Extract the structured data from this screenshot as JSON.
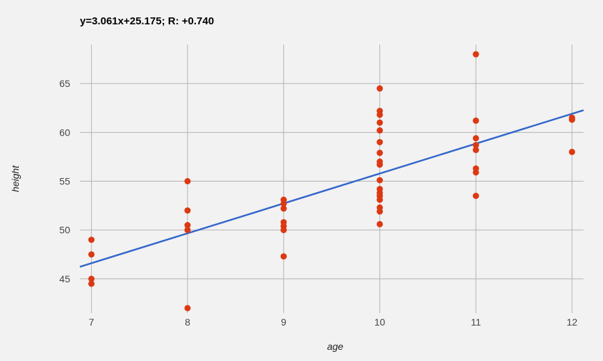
{
  "chart_data": {
    "type": "scatter",
    "title": "y=3.061x+25.175; R: +0.740",
    "xlabel": "age",
    "ylabel": "height",
    "xlim": [
      6.88,
      12.12
    ],
    "ylim": [
      41.5,
      69.0
    ],
    "x_ticks": [
      7,
      8,
      9,
      10,
      11,
      12
    ],
    "y_ticks": [
      45,
      50,
      55,
      60,
      65
    ],
    "grid": true,
    "colors": {
      "points": "#dc3912",
      "trendline": "#3366cc",
      "grid": "#b3b3b3",
      "background": "#f2f2f2"
    },
    "trendline": {
      "slope": 3.061,
      "intercept": 25.175
    },
    "series": [
      {
        "points": [
          [
            7,
            49.0
          ],
          [
            7,
            47.5
          ],
          [
            7,
            45.0
          ],
          [
            7,
            44.5
          ],
          [
            8,
            55.0
          ],
          [
            8,
            52.0
          ],
          [
            8,
            50.5
          ],
          [
            8,
            50.0
          ],
          [
            8,
            42.0
          ],
          [
            9,
            53.1
          ],
          [
            9,
            52.7
          ],
          [
            9,
            52.2
          ],
          [
            9,
            50.8
          ],
          [
            9,
            50.4
          ],
          [
            9,
            50.0
          ],
          [
            9,
            47.3
          ],
          [
            10,
            64.5
          ],
          [
            10,
            62.2
          ],
          [
            10,
            61.8
          ],
          [
            10,
            61.0
          ],
          [
            10,
            60.2
          ],
          [
            10,
            59.0
          ],
          [
            10,
            57.9
          ],
          [
            10,
            57.0
          ],
          [
            10,
            56.7
          ],
          [
            10,
            55.1
          ],
          [
            10,
            54.2
          ],
          [
            10,
            53.8
          ],
          [
            10,
            53.5
          ],
          [
            10,
            53.1
          ],
          [
            10,
            52.3
          ],
          [
            10,
            51.9
          ],
          [
            10,
            50.6
          ],
          [
            11,
            68.0
          ],
          [
            11,
            61.2
          ],
          [
            11,
            59.4
          ],
          [
            11,
            58.7
          ],
          [
            11,
            58.2
          ],
          [
            11,
            56.3
          ],
          [
            11,
            55.9
          ],
          [
            11,
            53.5
          ],
          [
            12,
            61.5
          ],
          [
            12,
            61.3
          ],
          [
            12,
            58.0
          ]
        ]
      }
    ]
  }
}
